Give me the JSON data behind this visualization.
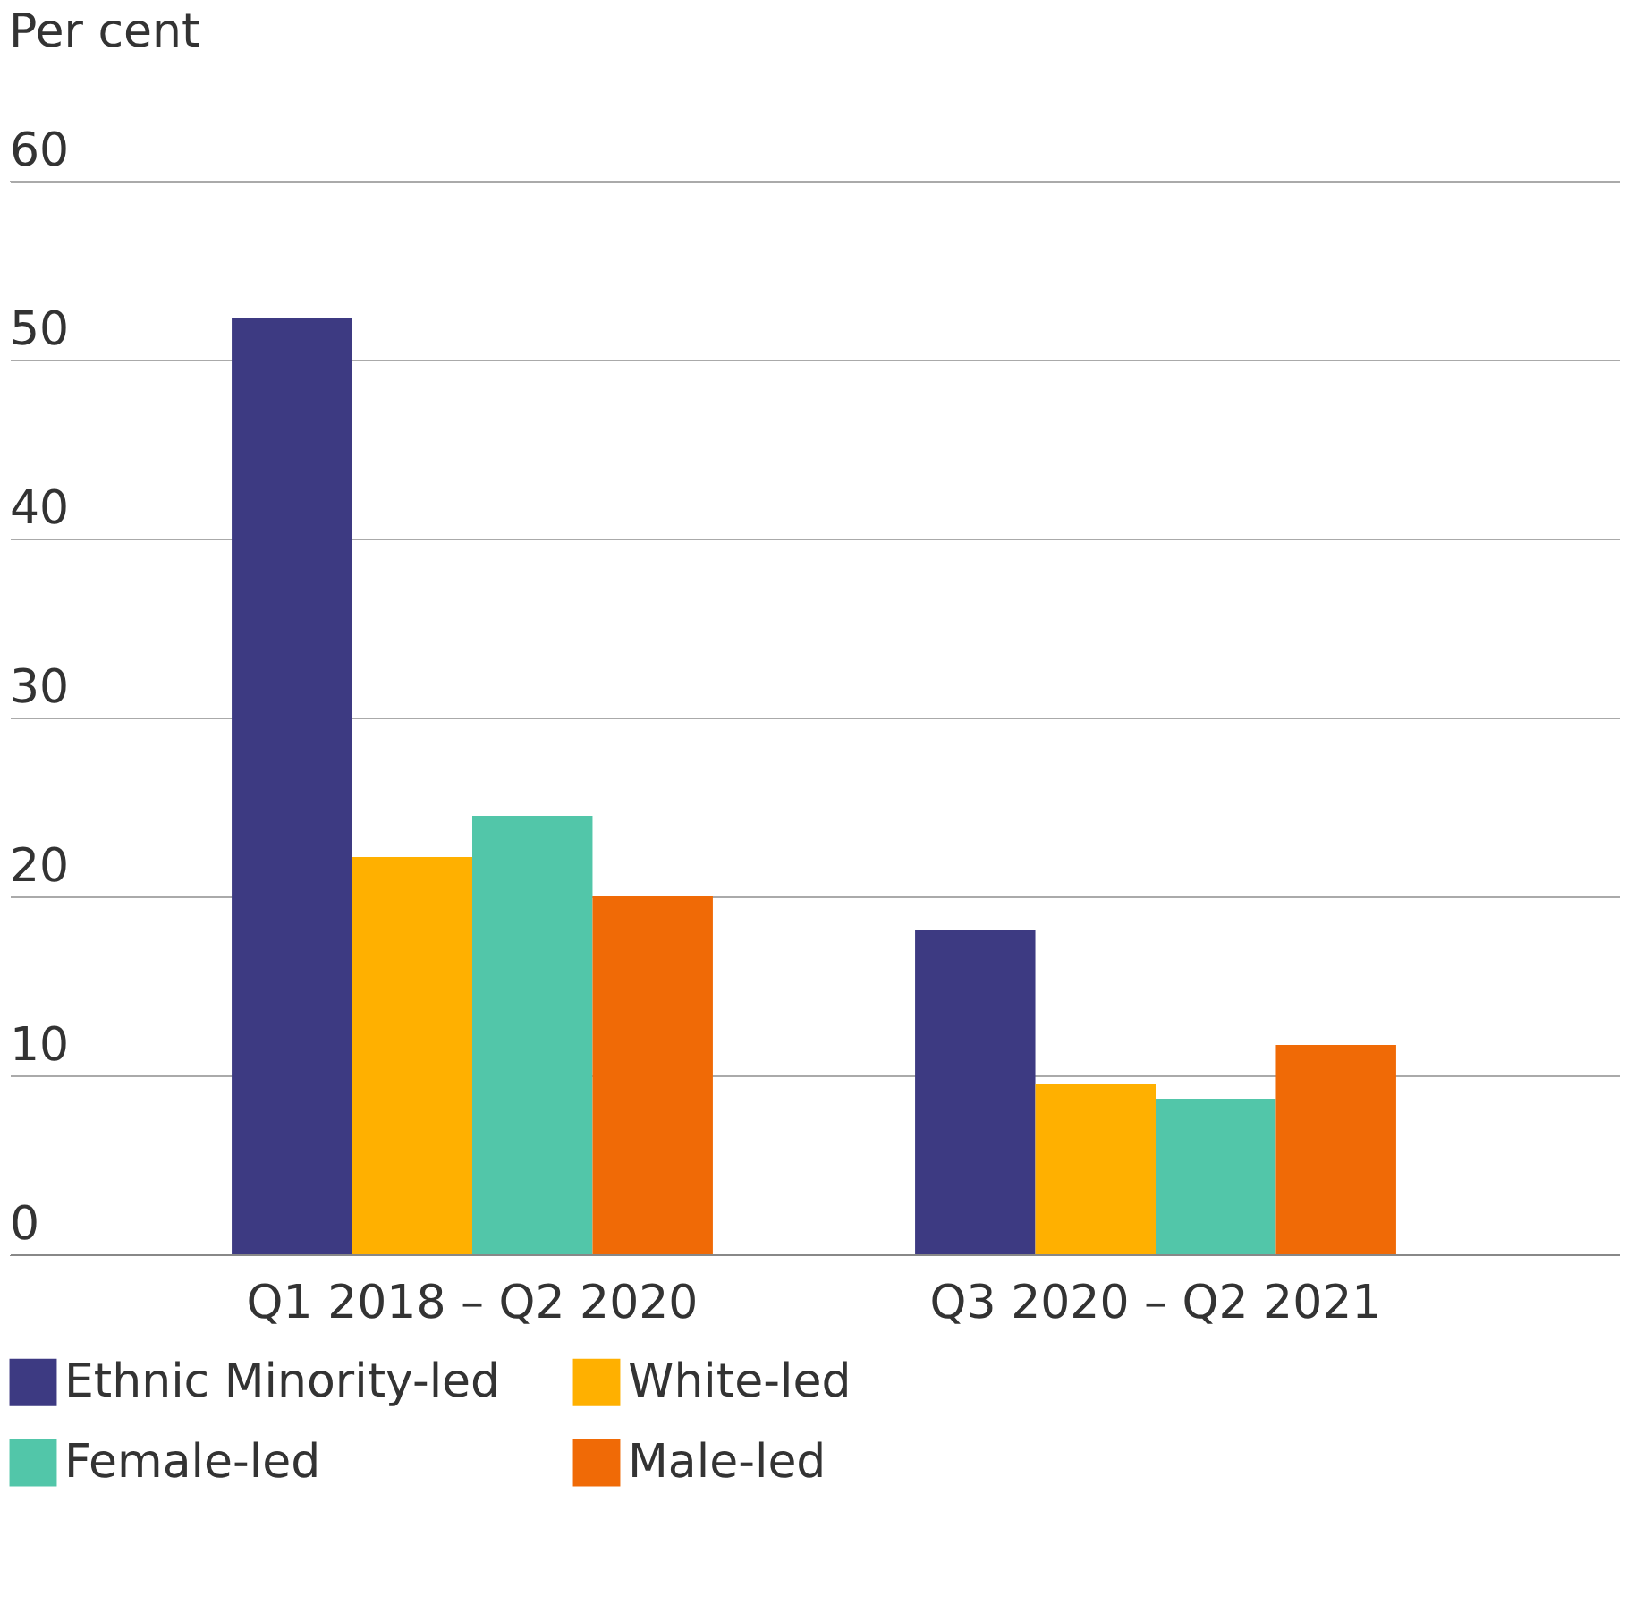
{
  "chart_data": {
    "type": "bar",
    "ylabel": "Per cent",
    "categories": [
      "Q1 2018 – Q2 2020",
      "Q3 2020 – Q2 2021"
    ],
    "series": [
      {
        "name": "Ethnic Minority-led",
        "color": "#3d3a82",
        "values": [
          52.3,
          18.1
        ]
      },
      {
        "name": "White-led",
        "color": "#ffb000",
        "values": [
          22.2,
          9.5
        ]
      },
      {
        "name": "Female-led",
        "color": "#52c6a9",
        "values": [
          24.5,
          8.7
        ]
      },
      {
        "name": "Male-led",
        "color": "#f06a06",
        "values": [
          20.0,
          11.7
        ]
      }
    ],
    "ylim": [
      0,
      60
    ],
    "yticks": [
      0,
      10,
      20,
      30,
      40,
      50,
      60
    ],
    "grid": "y",
    "legend": "bottom"
  }
}
